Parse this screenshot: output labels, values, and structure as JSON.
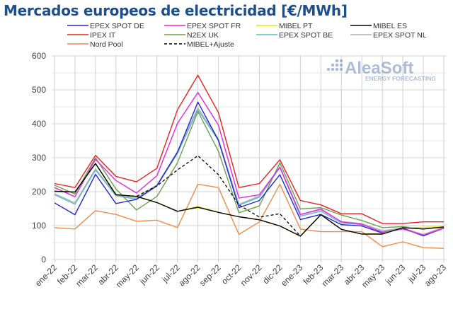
{
  "chart_data": {
    "type": "line",
    "title": "Mercados europeos de electricidad [€/MWh]",
    "xlabel": "",
    "ylabel": "",
    "ylim": [
      0,
      600
    ],
    "yticks": [
      "0",
      "100",
      "200",
      "300",
      "400",
      "500",
      "600"
    ],
    "grid": true,
    "legend_position": "top",
    "categories": [
      "ene-22",
      "feb-22",
      "mar-22",
      "abr-22",
      "may-22",
      "jun-22",
      "jul-22",
      "ago-22",
      "sep-22",
      "oct-22",
      "nov-22",
      "dic-22",
      "ene-23",
      "feb-23",
      "mar-23",
      "abr-23",
      "may-23",
      "jun-23",
      "jul-23",
      "ago-23"
    ],
    "series": [
      {
        "name": "EPEX SPOT DE",
        "color": "#2424d8",
        "dashed": false,
        "values": [
          167,
          132,
          251,
          165,
          177,
          217,
          316,
          464,
          351,
          153,
          174,
          250,
          118,
          133,
          103,
          99,
          78,
          92,
          70,
          92
        ]
      },
      {
        "name": "EPEX SPOT FR",
        "color": "#e624e6",
        "dashed": false,
        "values": [
          212,
          185,
          295,
          233,
          196,
          247,
          401,
          492,
          396,
          181,
          191,
          272,
          133,
          149,
          111,
          104,
          80,
          90,
          72,
          92
        ]
      },
      {
        "name": "MIBEL PT",
        "color": "#f2e600",
        "dashed": false,
        "values": [
          201,
          199,
          283,
          191,
          186,
          168,
          142,
          156,
          139,
          126,
          117,
          99,
          69,
          132,
          89,
          75,
          76,
          94,
          95,
          97
        ]
      },
      {
        "name": "MIBEL ES",
        "color": "#000000",
        "dashed": false,
        "values": [
          201,
          199,
          283,
          191,
          186,
          168,
          142,
          154,
          139,
          126,
          117,
          99,
          69,
          132,
          89,
          75,
          75,
          94,
          90,
          96
        ]
      },
      {
        "name": "IPEX IT",
        "color": "#e82020",
        "dashed": false,
        "values": [
          224,
          212,
          307,
          245,
          229,
          269,
          441,
          543,
          433,
          212,
          224,
          294,
          174,
          161,
          135,
          135,
          106,
          106,
          111,
          111
        ]
      },
      {
        "name": "N2EX UK",
        "color": "#6e9e50",
        "dashed": false,
        "values": [
          219,
          193,
          300,
          208,
          146,
          186,
          285,
          436,
          319,
          138,
          158,
          285,
          149,
          153,
          131,
          115,
          94,
          97,
          90,
          97
        ]
      },
      {
        "name": "EPEX SPOT BE",
        "color": "#5fb8cc",
        "dashed": false,
        "values": [
          191,
          163,
          264,
          188,
          178,
          217,
          313,
          441,
          351,
          160,
          184,
          271,
          128,
          142,
          108,
          103,
          82,
          92,
          69,
          94
        ]
      },
      {
        "name": "EPEX SPOT NL",
        "color": "#b4b4b4",
        "dashed": false,
        "values": [
          194,
          167,
          267,
          191,
          181,
          220,
          318,
          447,
          355,
          163,
          187,
          274,
          132,
          146,
          112,
          106,
          85,
          93,
          74,
          96
        ]
      },
      {
        "name": "Nord Pool",
        "color": "#f08a48",
        "dashed": false,
        "values": [
          94,
          90,
          144,
          133,
          113,
          116,
          94,
          222,
          212,
          74,
          111,
          222,
          90,
          82,
          82,
          82,
          38,
          52,
          35,
          33
        ]
      },
      {
        "name": "MIBEL+Ajuste",
        "color": "#000000",
        "dashed": true,
        "values": [
          201,
          199,
          283,
          191,
          186,
          217,
          264,
          306,
          250,
          161,
          125,
          135,
          69,
          null,
          null,
          null,
          null,
          null,
          null,
          null
        ]
      }
    ],
    "watermark": {
      "brand": "AleaSoft",
      "tagline": "ENERGY FORECASTING"
    }
  }
}
